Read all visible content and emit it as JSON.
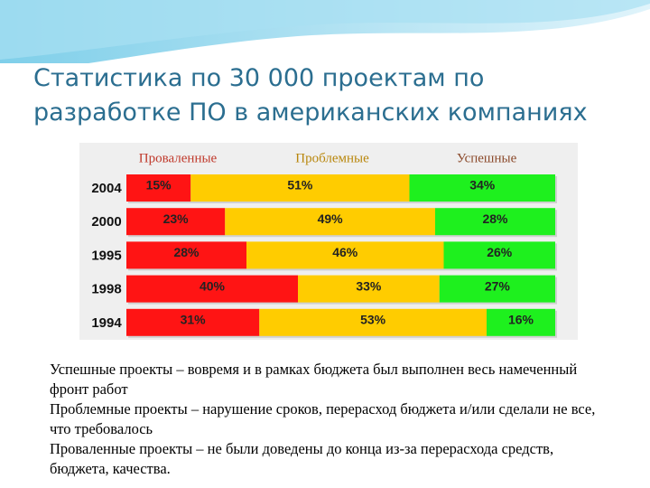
{
  "chart_data": {
    "type": "stacked-bar-horizontal",
    "title": "Статистика по 30 000 проектам по разработке ПО в американских компаниях",
    "categories": [
      "2004",
      "2000",
      "1995",
      "1998",
      "1994"
    ],
    "series": [
      {
        "name": "Проваленные",
        "color": "#ff1414",
        "legend_color": "#c0392b",
        "values": [
          15,
          23,
          28,
          40,
          31
        ],
        "value_labels": [
          "15%",
          "23%",
          "28%",
          "40%",
          "31%"
        ]
      },
      {
        "name": "Проблемные",
        "color": "#ffcc00",
        "legend_color": "#b8860b",
        "values": [
          51,
          49,
          46,
          33,
          53
        ],
        "value_labels": [
          "51%",
          "49%",
          "46%",
          "33%",
          "53%"
        ]
      },
      {
        "name": "Успешные",
        "color": "#1ef01e",
        "legend_color": "#8b4a2b",
        "values": [
          34,
          28,
          26,
          27,
          16
        ],
        "value_labels": [
          "34%",
          "28%",
          "26%",
          "27%",
          "16%"
        ]
      }
    ],
    "xlim": [
      0,
      100
    ]
  },
  "notes": [
    "Успешные проекты – вовремя и в рамках бюджета был выполнен весь намеченный фронт работ",
    "Проблемные проекты – нарушение сроков, перерасход бюджета и/или сделали не все, что требовалось",
    "Проваленные проекты – не были доведены до конца из-за перерасхода средств, бюджета, качества."
  ]
}
